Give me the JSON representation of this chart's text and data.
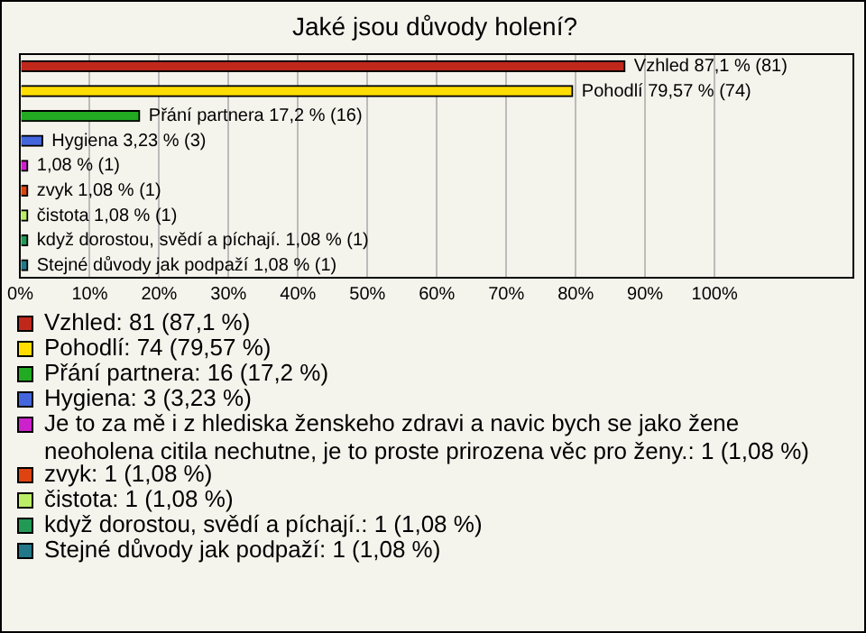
{
  "chart_data": {
    "type": "bar",
    "orientation": "horizontal",
    "stacked": true,
    "title": "Jaké jsou důvody holení?",
    "categories": [
      null,
      null,
      null,
      null,
      null,
      null,
      null,
      null,
      null
    ],
    "series": [
      {
        "name": "Vzhled: 81 (87,1 %)",
        "color": "#c0281c",
        "values": [
          87.1,
          null,
          null,
          null,
          null,
          null,
          null,
          null,
          null
        ],
        "value_labels": [
          "Vzhled 87,1 % (81)",
          null,
          null,
          null,
          null,
          null,
          null,
          null,
          null
        ]
      },
      {
        "name": "Pohodlí: 74 (79,57 %)",
        "color": "#ffdd00",
        "values": [
          null,
          79.57,
          null,
          null,
          null,
          null,
          null,
          null,
          null
        ],
        "value_labels": [
          null,
          "Pohodlí 79,57 % (74)",
          null,
          null,
          null,
          null,
          null,
          null,
          null
        ]
      },
      {
        "name": "Přání partnera: 16 (17,2 %)",
        "color": "#22aa22",
        "values": [
          null,
          null,
          17.2,
          null,
          null,
          null,
          null,
          null,
          null
        ],
        "value_labels": [
          null,
          null,
          "Přání partnera 17,2 % (16)",
          null,
          null,
          null,
          null,
          null,
          null
        ]
      },
      {
        "name": "Hygiena: 3 (3,23 %)",
        "color": "#4466dd",
        "values": [
          null,
          null,
          null,
          3.23,
          null,
          null,
          null,
          null,
          null
        ],
        "value_labels": [
          null,
          null,
          null,
          "Hygiena 3,23 % (3)",
          null,
          null,
          null,
          null,
          null
        ]
      },
      {
        "name": "Je to za mě i z hlediska ženskeho zdravi a navic bych se jako žene neoholena citila nechutne, je to proste prirozena věc pro ženy.: 1 (1,08 %)",
        "color": "#cc22cc",
        "values": [
          null,
          null,
          null,
          null,
          1.08,
          null,
          null,
          null,
          null
        ],
        "value_labels": [
          null,
          null,
          null,
          null,
          "1,08 % (1)",
          null,
          null,
          null,
          null
        ]
      },
      {
        "name": "zvyk: 1 (1,08 %)",
        "color": "#dd4411",
        "values": [
          null,
          null,
          null,
          null,
          null,
          1.08,
          null,
          null,
          null
        ],
        "value_labels": [
          null,
          null,
          null,
          null,
          null,
          "zvyk 1,08 % (1)",
          null,
          null,
          null
        ]
      },
      {
        "name": "čistota: 1 (1,08 %)",
        "color": "#bbee66",
        "values": [
          null,
          null,
          null,
          null,
          null,
          null,
          1.08,
          null,
          null
        ],
        "value_labels": [
          null,
          null,
          null,
          null,
          null,
          null,
          "čistota 1,08 % (1)",
          null,
          null
        ]
      },
      {
        "name": "když dorostou, svědí a píchají.: 1 (1,08 %)",
        "color": "#229955",
        "values": [
          null,
          null,
          null,
          null,
          null,
          null,
          null,
          1.08,
          null
        ],
        "value_labels": [
          null,
          null,
          null,
          null,
          null,
          null,
          null,
          "když dorostou, svědí a píchají. 1,08 % (1)",
          null
        ]
      },
      {
        "name": "Stejné důvody jak podpaží: 1 (1,08 %)",
        "color": "#227788",
        "values": [
          null,
          null,
          null,
          null,
          null,
          null,
          null,
          null,
          1.08
        ],
        "value_labels": [
          null,
          null,
          null,
          null,
          null,
          null,
          null,
          null,
          "Stejné důvody jak podpaží 1,08 % (1)"
        ]
      }
    ],
    "xlim": [
      0,
      120
    ],
    "xticks": [
      {
        "value": 0,
        "label": "0%"
      },
      {
        "value": 10,
        "label": "10%"
      },
      {
        "value": 20,
        "label": "20%"
      },
      {
        "value": 30,
        "label": "30%"
      },
      {
        "value": 40,
        "label": "40%"
      },
      {
        "value": 50,
        "label": "50%"
      },
      {
        "value": 60,
        "label": "60%"
      },
      {
        "value": 70,
        "label": "70%"
      },
      {
        "value": 80,
        "label": "80%"
      },
      {
        "value": 90,
        "label": "90%"
      },
      {
        "value": 100,
        "label": "100%"
      }
    ],
    "tick_labels": "x",
    "grid": "x",
    "legend": "bottom"
  }
}
